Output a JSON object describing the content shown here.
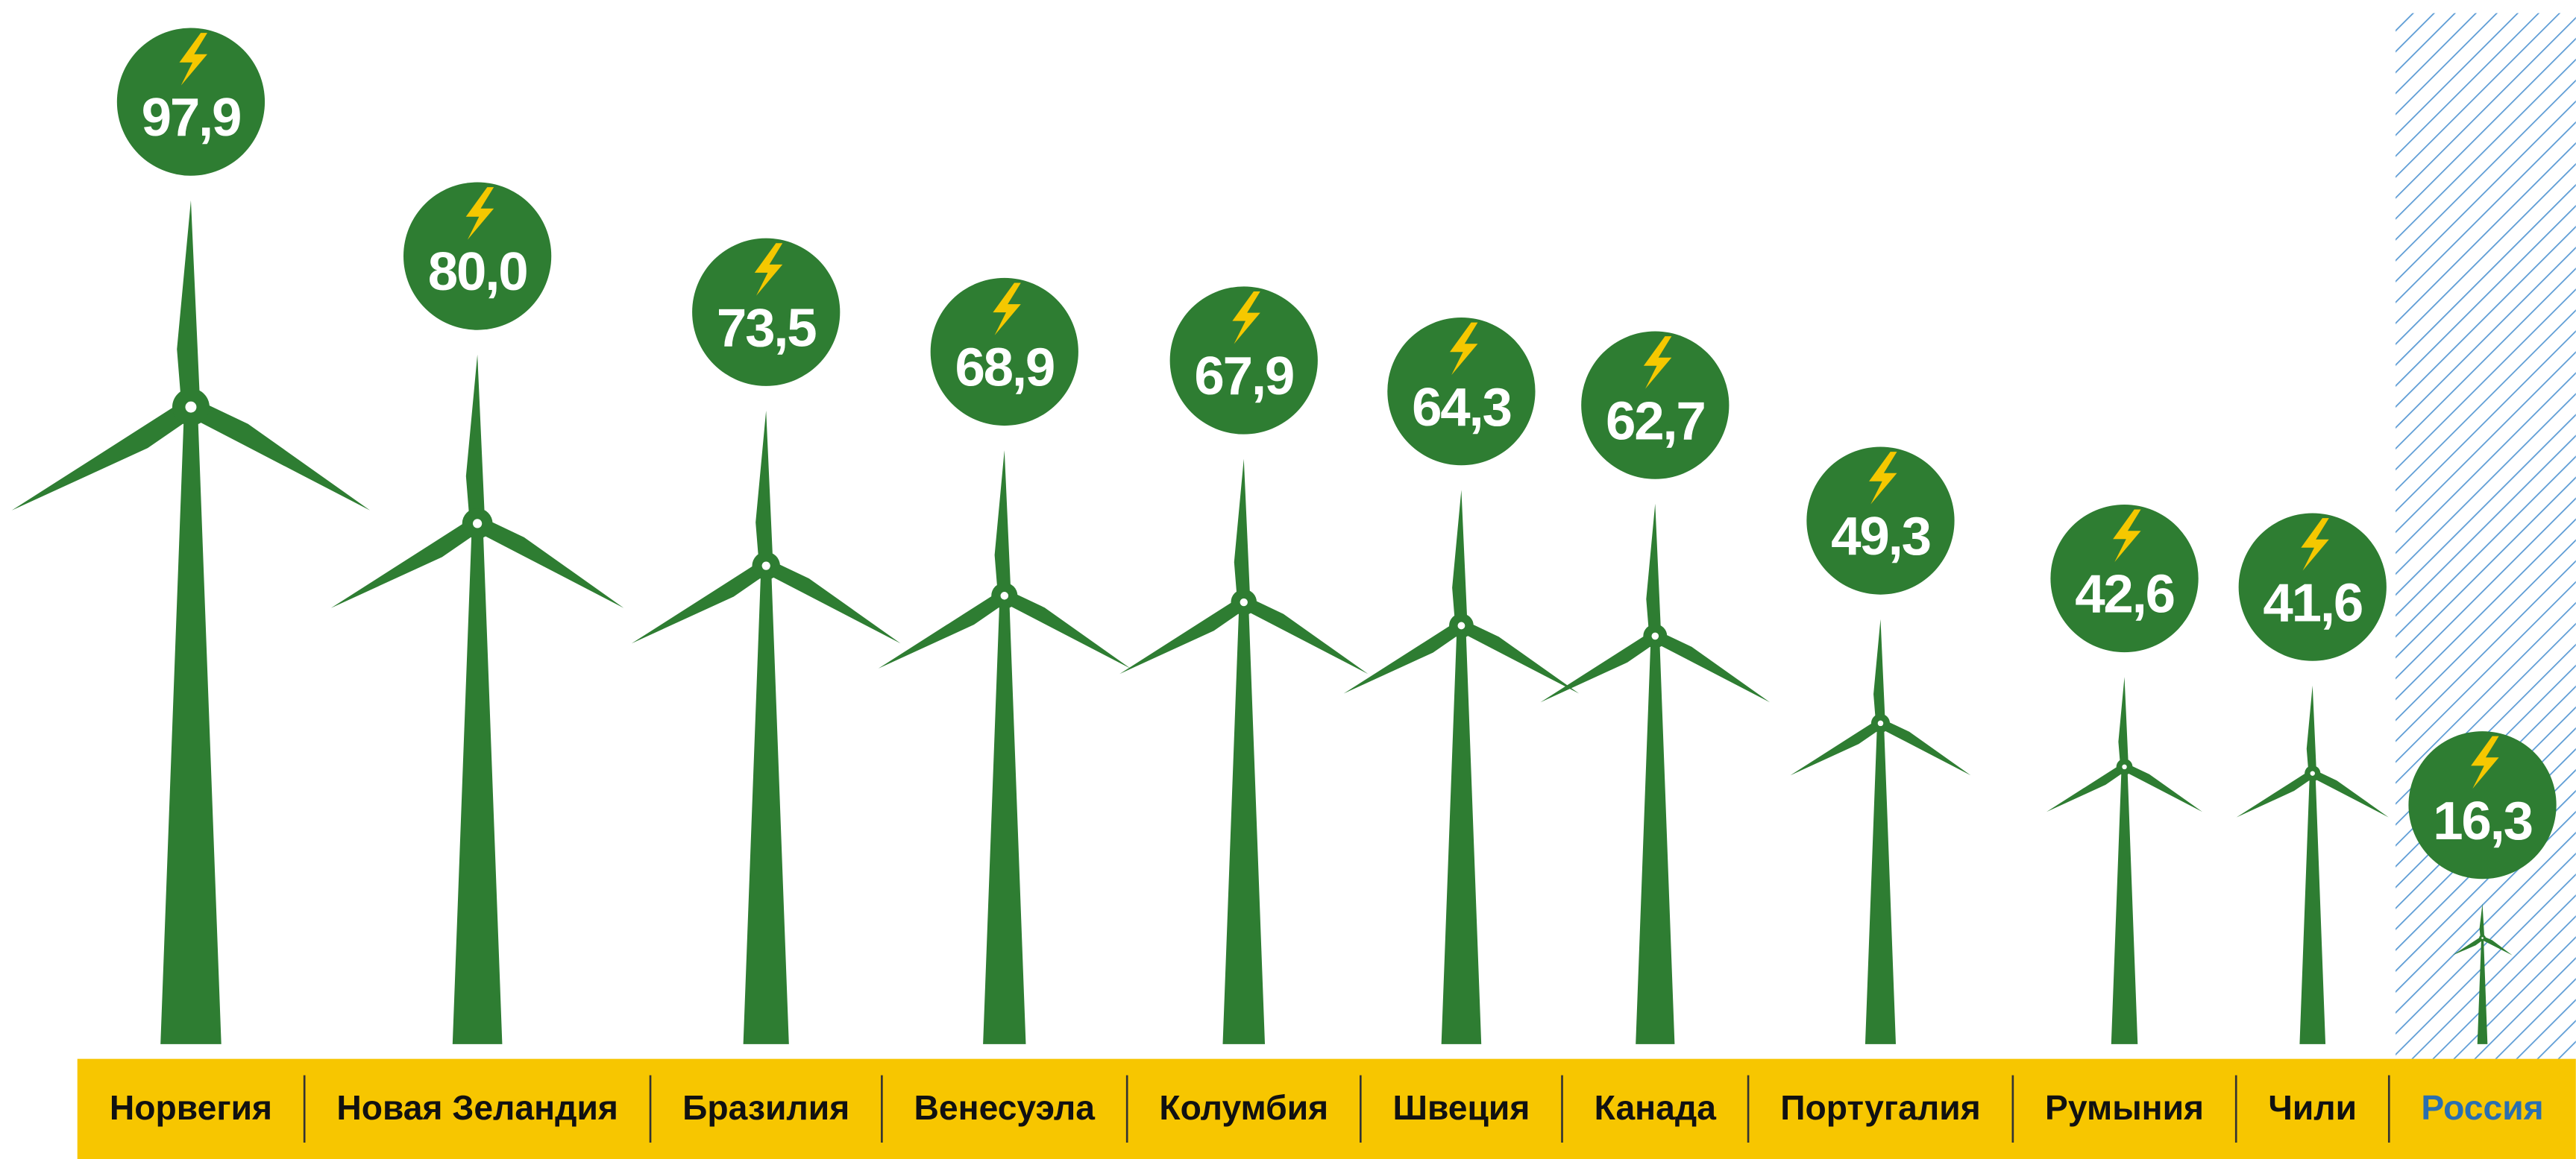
{
  "chart_data": {
    "type": "pictogram",
    "categories": [
      "Норвегия",
      "Новая Зеландия",
      "Бразилия",
      "Венесуэла",
      "Колумбия",
      "Швеция",
      "Канада",
      "Португалия",
      "Румыния",
      "Чили",
      "Россия"
    ],
    "values": [
      97.9,
      80.0,
      73.5,
      68.9,
      67.9,
      64.3,
      62.7,
      49.3,
      42.6,
      41.6,
      16.3
    ],
    "value_labels": [
      "97,9",
      "80,0",
      "73,5",
      "68,9",
      "67,9",
      "64,3",
      "62,7",
      "49,3",
      "42,6",
      "41,6",
      "16,3"
    ],
    "color": "#2e7d32",
    "band_color": "#f7c600",
    "bolt_color": "#f5c800",
    "highlight": {
      "index": 10,
      "color": "#2a6fb0"
    }
  }
}
